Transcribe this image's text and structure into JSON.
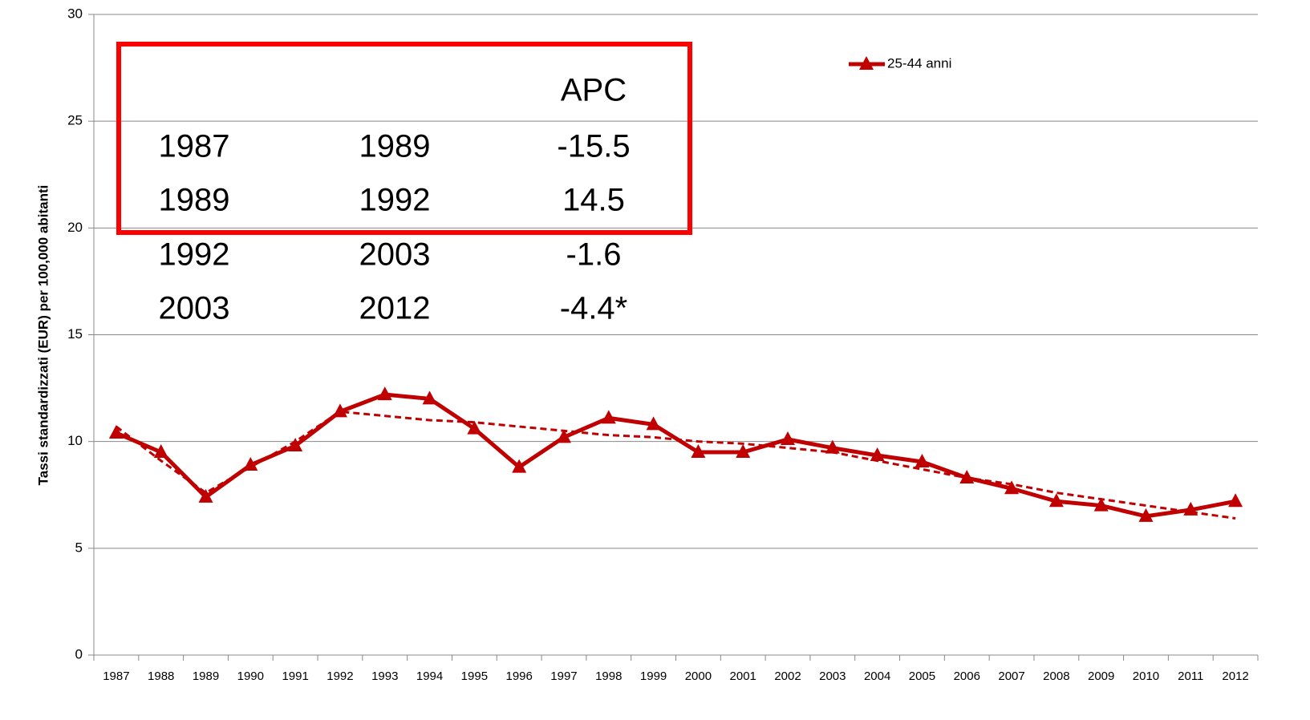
{
  "chart_data": {
    "type": "line",
    "y_label": "Tassi standardizzati  (EUR) per 100,000 abitanti",
    "categories": [
      "1987",
      "1988",
      "1989",
      "1990",
      "1991",
      "1992",
      "1993",
      "1994",
      "1995",
      "1996",
      "1997",
      "1998",
      "1999",
      "2000",
      "2001",
      "2002",
      "2003",
      "2004",
      "2005",
      "2006",
      "2007",
      "2008",
      "2009",
      "2010",
      "2011",
      "2012"
    ],
    "series": [
      {
        "name": "25-44 anni",
        "color": "#c00000",
        "marker": "triangle",
        "values": [
          10.4,
          9.5,
          7.4,
          8.9,
          9.8,
          11.4,
          12.2,
          12.0,
          10.6,
          8.8,
          10.2,
          11.1,
          10.8,
          9.5,
          9.5,
          10.1,
          9.7,
          9.35,
          9.05,
          8.3,
          7.8,
          7.2,
          7.0,
          6.5,
          6.8,
          7.2
        ]
      },
      {
        "color": "#c00000",
        "dashed": true,
        "values": [
          10.7,
          9.1,
          7.6,
          8.8,
          10.0,
          11.4,
          11.2,
          11.0,
          10.9,
          10.7,
          10.5,
          10.3,
          10.2,
          10.0,
          9.9,
          9.7,
          9.5,
          9.1,
          8.7,
          8.3,
          8.0,
          7.6,
          7.3,
          7.0,
          6.7,
          6.4
        ]
      }
    ],
    "ylim": [
      0,
      30
    ],
    "yticks": [
      0,
      5,
      10,
      15,
      20,
      25,
      30
    ],
    "grid": true,
    "legend": "top-right",
    "table": {
      "header": "APC",
      "rows": [
        [
          "1987",
          "1989",
          "-15.5"
        ],
        [
          "1989",
          "1992",
          "14.5"
        ],
        [
          "1992",
          "2003",
          "-1.6"
        ],
        [
          "2003",
          "2012",
          "-4.4*"
        ]
      ]
    }
  }
}
